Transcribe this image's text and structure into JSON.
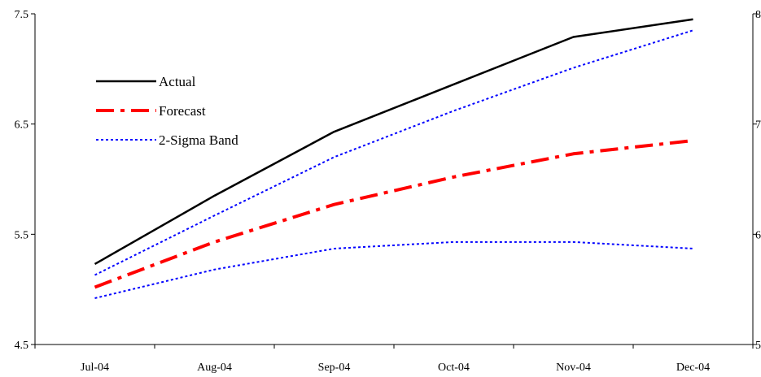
{
  "chart_data": {
    "type": "line",
    "categories": [
      "Jul-04",
      "Aug-04",
      "Sep-04",
      "Oct-04",
      "Nov-04",
      "Dec-04"
    ],
    "y_left": {
      "ylim": [
        4.5,
        7.5
      ],
      "ticks": [
        "4.5",
        "5.5",
        "6.5",
        "7.5"
      ]
    },
    "y_right": {
      "ylim": [
        5,
        8
      ],
      "ticks": [
        "5",
        "6",
        "7",
        "8"
      ]
    },
    "grid": false,
    "legend_position": "upper-left",
    "series": [
      {
        "name": "Actual",
        "color": "#000000",
        "style": "solid",
        "values": [
          5.23,
          5.85,
          6.43,
          6.86,
          7.29,
          7.45
        ]
      },
      {
        "name": "Forecast",
        "color": "#ff0000",
        "style": "dash-dot",
        "values": [
          5.02,
          5.43,
          5.77,
          6.02,
          6.23,
          6.35
        ]
      },
      {
        "name": "2-Sigma Band",
        "color": "#0000ff",
        "style": "dotted",
        "values": [
          5.13,
          5.67,
          6.2,
          6.62,
          7.01,
          7.35
        ]
      },
      {
        "name": "",
        "color": "#0000ff",
        "style": "dotted",
        "values": [
          4.92,
          5.18,
          5.37,
          5.43,
          5.43,
          5.37
        ]
      }
    ]
  }
}
